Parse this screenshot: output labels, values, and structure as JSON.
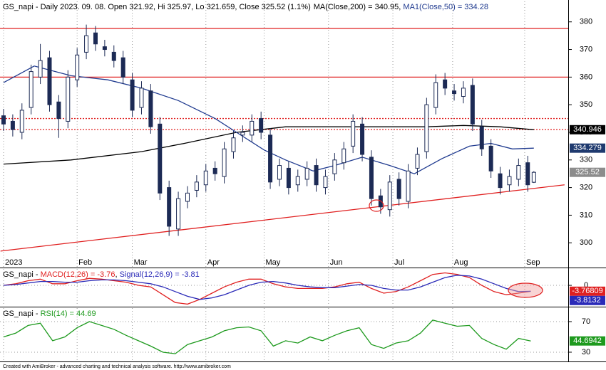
{
  "chart_data": [
    {
      "type": "candlestick",
      "title": "GS_napi - Daily 2023. 09. 08. Open 321.92, Hi 325.97, Lo 321.659, Close 325.52 (1.1%)",
      "separator": ", ",
      "x": [
        0,
        3,
        6,
        9,
        12,
        15,
        18,
        21,
        24,
        27,
        30,
        33,
        36,
        39,
        42,
        45,
        48,
        51,
        54,
        57,
        60,
        63,
        66,
        69,
        72,
        75,
        78,
        81,
        84,
        87,
        90,
        93,
        96,
        99,
        102,
        105,
        108,
        111,
        114,
        117,
        120,
        123,
        126,
        129,
        132,
        135,
        138,
        141,
        144,
        147,
        150,
        153,
        156,
        159,
        162,
        165,
        168,
        171,
        173
      ],
      "open": [
        346,
        344,
        340,
        349,
        360,
        367,
        351,
        344,
        359,
        369,
        376,
        371,
        369,
        367,
        359,
        349,
        355,
        343,
        320,
        305,
        315,
        319,
        321,
        327,
        324,
        333,
        339,
        339,
        345,
        339,
        323,
        327,
        321,
        323,
        328,
        320,
        325,
        329,
        335,
        343,
        331,
        317,
        312,
        323,
        315,
        327,
        333,
        349,
        359,
        355,
        353,
        357,
        342,
        335,
        325,
        321,
        323,
        329,
        321.92
      ],
      "high": [
        348.5,
        346.5,
        350.5,
        364.5,
        372,
        369.5,
        353.5,
        362.5,
        370.5,
        379,
        378.5,
        373.5,
        371.5,
        369.5,
        361.5,
        358.5,
        357.5,
        345.5,
        322.5,
        318.5,
        320.5,
        324.5,
        328.5,
        329.5,
        336.5,
        340.5,
        342.5,
        346.5,
        347.5,
        341.5,
        330.5,
        329.5,
        326.5,
        329.5,
        330.5,
        326.5,
        332.5,
        336.5,
        346.5,
        345.5,
        333.5,
        319.5,
        324.5,
        325.5,
        328.5,
        334.5,
        352.5,
        361,
        361.5,
        357.5,
        358.5,
        359.5,
        344.5,
        337.5,
        327.5,
        326.5,
        330.5,
        331.5,
        325.97
      ],
      "low": [
        340.5,
        338.5,
        337.5,
        346.5,
        357.5,
        347.5,
        338,
        341.5,
        356.5,
        366.5,
        369.5,
        367.5,
        363.5,
        357.5,
        345.5,
        346.5,
        339.5,
        315.5,
        302.5,
        302.5,
        312.5,
        316.5,
        318.5,
        322.5,
        321.5,
        330.5,
        336.5,
        336.5,
        337.5,
        319.5,
        320.5,
        317.5,
        318.5,
        320.5,
        318.5,
        317.5,
        322.5,
        326.5,
        332.5,
        329.5,
        313.5,
        310.5,
        309.5,
        313.5,
        312.5,
        324.5,
        330.5,
        346.5,
        353.5,
        351.5,
        350.5,
        340.5,
        331.5,
        323.5,
        317.5,
        318.5,
        320.5,
        318.5,
        321.659
      ],
      "close": [
        343,
        341,
        348,
        362,
        366,
        350,
        345,
        360,
        368,
        375,
        372,
        370,
        366,
        360,
        348,
        356,
        342,
        318,
        306,
        316,
        318,
        322,
        326,
        325,
        334,
        338,
        340,
        344,
        340,
        322,
        328,
        320,
        324,
        327,
        321,
        324,
        330,
        334,
        344,
        332,
        316,
        313,
        322,
        316,
        326,
        332,
        350,
        358,
        356,
        354,
        356,
        343,
        334,
        326,
        320,
        324,
        328,
        321,
        325.52
      ],
      "up_color": "#ffffff",
      "down_color": "#1c2a55",
      "candle_edge": "#1c2a55",
      "series": [
        {
          "name": "MA(Close,200) = 340.95",
          "color": "#000000",
          "x": [
            0,
            22,
            45,
            59,
            76,
            92,
            115,
            138,
            150,
            162,
            173
          ],
          "values": [
            328.5,
            330,
            333,
            336,
            340,
            342,
            342,
            342,
            342.5,
            342,
            340.95
          ]
        },
        {
          "name": "MA1(Close,50) = 334.28",
          "color": "#1f3a8f",
          "x": [
            0,
            10,
            22,
            34,
            45,
            57,
            69,
            76,
            85,
            92,
            101,
            108,
            117,
            126,
            134,
            143,
            152,
            159,
            166,
            173
          ],
          "values": [
            358,
            364,
            360.5,
            359,
            356,
            351.5,
            345,
            340,
            333.6,
            330,
            326,
            328,
            331,
            328,
            325,
            330.5,
            335,
            336,
            334,
            334.28
          ]
        }
      ],
      "hlines": [
        {
          "value": 377.6,
          "color": "#e02020",
          "style": "solid"
        },
        {
          "value": 360,
          "color": "#e02020",
          "style": "solid"
        },
        {
          "value": 345,
          "color": "#e02020",
          "style": "dotted"
        },
        {
          "value": 341,
          "color": "#e02020",
          "style": "dotted"
        }
      ],
      "trendline": {
        "x": [
          -1,
          183
        ],
        "values": [
          297,
          321
        ],
        "color": "#e02020"
      },
      "last_labels": [
        {
          "value": 340.946,
          "color": "#000000"
        },
        {
          "value": 334.279,
          "color": "#1f3a6f"
        },
        {
          "value": 325.52,
          "color": "#8c8c8c"
        }
      ],
      "xlim": [
        -1.16,
        184.2
      ],
      "ylim": [
        291.3,
        387.4
      ],
      "yticks": [
        300,
        310,
        320,
        330,
        340,
        350,
        360,
        370,
        380
      ],
      "xticks": [
        {
          "value": 0,
          "label": "2023"
        },
        {
          "value": 24,
          "label": "Feb"
        },
        {
          "value": 42,
          "label": "Mar"
        },
        {
          "value": 66,
          "label": "Apr"
        },
        {
          "value": 85,
          "label": "May"
        },
        {
          "value": 106,
          "label": "Jun"
        },
        {
          "value": 127,
          "label": "Jul"
        },
        {
          "value": 146.5,
          "label": "Aug"
        },
        {
          "value": 170,
          "label": "Sep"
        }
      ],
      "grid": true
    },
    {
      "type": "line",
      "title": "GS_napi - ",
      "separator": ", ",
      "x": [
        0,
        4,
        8,
        12,
        16,
        20,
        24,
        28,
        32,
        36,
        40,
        44,
        48,
        52,
        56,
        60,
        64,
        68,
        72,
        76,
        80,
        84,
        88,
        92,
        96,
        100,
        104,
        108,
        112,
        116,
        120,
        124,
        128,
        132,
        136,
        140,
        144,
        148,
        152,
        156,
        160,
        164,
        168,
        172
      ],
      "series": [
        {
          "name": "MACD(12,26) = -3.76",
          "color": "#e02020",
          "values": [
            0,
            1,
            3,
            4,
            1,
            1,
            3,
            4.5,
            4,
            3,
            2,
            0,
            -1,
            -6,
            -11,
            -12,
            -9,
            -5,
            -1,
            2,
            4,
            4,
            1,
            -1,
            -2,
            -2,
            -2,
            -1,
            1,
            2,
            -2,
            -5,
            -4,
            -1,
            3,
            7,
            8,
            7,
            5,
            0,
            -4,
            -6,
            -5,
            -3.76
          ]
        },
        {
          "name": "Signal(12,26,9) = -3.81",
          "color": "#2a2ab8",
          "values": [
            0,
            0.5,
            1.5,
            2.5,
            2.5,
            2,
            2,
            3,
            3.5,
            3.5,
            3,
            2,
            1,
            -1,
            -4,
            -7,
            -9,
            -8,
            -6,
            -3,
            0,
            2,
            2.5,
            1.5,
            0,
            -1,
            -1.5,
            -1.5,
            -0.5,
            0.5,
            0,
            -2,
            -3,
            -3,
            -1,
            2,
            5,
            6.5,
            6,
            4,
            1,
            -2,
            -4,
            -3.81
          ]
        }
      ],
      "last_labels": [
        {
          "value": -3.76809,
          "color": "#e02020"
        },
        {
          "value": -3.8132,
          "color": "#2a2ab8"
        }
      ],
      "ylim": [
        -13.2,
        10.5
      ],
      "yticks": [
        0
      ],
      "grid": true
    },
    {
      "type": "line",
      "title": "GS_napi - ",
      "separator": ", ",
      "x": [
        0,
        4,
        8,
        12,
        16,
        20,
        24,
        28,
        32,
        36,
        40,
        44,
        48,
        52,
        56,
        60,
        64,
        68,
        72,
        76,
        80,
        84,
        88,
        92,
        96,
        100,
        104,
        108,
        112,
        116,
        120,
        124,
        128,
        132,
        136,
        140,
        144,
        148,
        152,
        156,
        160,
        164,
        168,
        172
      ],
      "series": [
        {
          "name": "RSI(14) = 44.69",
          "color": "#1e9a1e",
          "values": [
            50,
            55,
            65,
            68,
            45,
            50,
            62,
            70,
            65,
            60,
            52,
            45,
            38,
            30,
            28,
            40,
            45,
            50,
            58,
            62,
            63,
            58,
            38,
            45,
            42,
            50,
            45,
            52,
            58,
            62,
            40,
            35,
            42,
            45,
            55,
            72,
            68,
            64,
            65,
            48,
            40,
            34,
            48,
            44.69
          ]
        }
      ],
      "last_labels": [
        {
          "value": 44.6942,
          "color": "#1e9a1e"
        }
      ],
      "ylim": [
        18.8,
        87.7
      ],
      "yticks": [
        30,
        70
      ],
      "grid": true
    }
  ],
  "footer": "Created with AmiBroker - advanced charting and technical analysis software. http://www.amibroker.com"
}
